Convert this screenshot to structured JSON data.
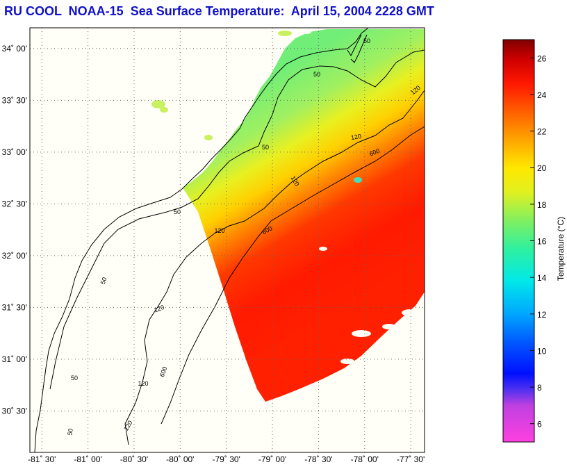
{
  "title": "RU COOL  NOAA-15  Sea Surface Temperature:  April 15, 2004 2228 GMT",
  "map": {
    "lat_ticks": [
      {
        "value": 34.0,
        "label": "34˚ 00'"
      },
      {
        "value": 33.5,
        "label": "33˚ 30'"
      },
      {
        "value": 33.0,
        "label": "33˚ 00'"
      },
      {
        "value": 32.5,
        "label": "32˚ 30'"
      },
      {
        "value": 32.0,
        "label": "32˚ 00'"
      },
      {
        "value": 31.5,
        "label": "31˚ 30'"
      },
      {
        "value": 31.0,
        "label": "31˚ 00'"
      },
      {
        "value": 30.5,
        "label": "30˚ 30'"
      }
    ],
    "lon_ticks": [
      {
        "value": -81.5,
        "label": "-81˚ 30'"
      },
      {
        "value": -81.0,
        "label": "-81˚ 00'"
      },
      {
        "value": -80.5,
        "label": "-80˚ 30'"
      },
      {
        "value": -80.0,
        "label": "-80˚ 00'"
      },
      {
        "value": -79.5,
        "label": "-79˚ 30'"
      },
      {
        "value": -79.0,
        "label": "-79˚ 00'"
      },
      {
        "value": -78.5,
        "label": "-78˚ 30'"
      },
      {
        "value": -78.0,
        "label": "-78˚ 00'"
      },
      {
        "value": -77.5,
        "label": "-77˚ 30'"
      }
    ],
    "lon_range": [
      -81.63,
      -77.35
    ],
    "lat_range": [
      30.1,
      34.2
    ],
    "grid": "dotted",
    "isobath_labels": [
      "50",
      "120",
      "600"
    ]
  },
  "colorbar": {
    "label": "Temperature (°C)",
    "range": [
      5,
      27
    ],
    "ticks": [
      6,
      8,
      10,
      12,
      14,
      16,
      18,
      20,
      22,
      24,
      26
    ]
  },
  "colors": {
    "title": "#1010c8",
    "land": "#fffff8",
    "coast": "#000000"
  }
}
